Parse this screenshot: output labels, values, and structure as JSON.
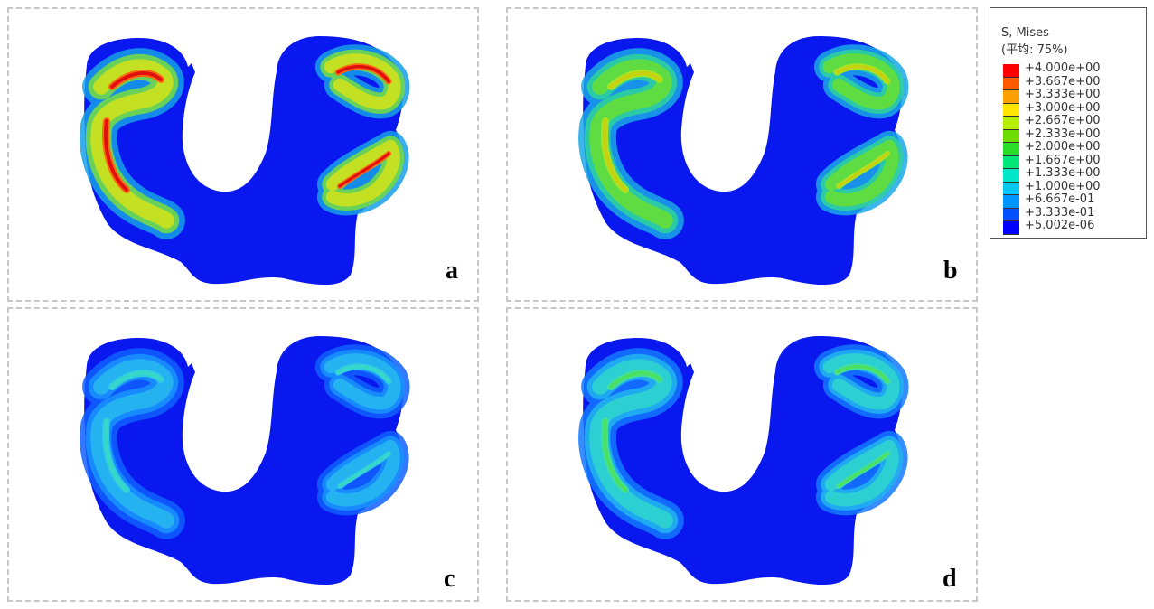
{
  "panels": [
    {
      "label": "a",
      "intensity": "high"
    },
    {
      "label": "b",
      "intensity": "medium-high"
    },
    {
      "label": "c",
      "intensity": "low"
    },
    {
      "label": "d",
      "intensity": "medium-low"
    }
  ],
  "legend": {
    "title_line1": "S, Mises",
    "title_line2": "(平均: 75%)",
    "entries": [
      {
        "value": "+4.000e+00",
        "color": "#ff0000"
      },
      {
        "value": "+3.667e+00",
        "color": "#ff5a00"
      },
      {
        "value": "+3.333e+00",
        "color": "#ffa000"
      },
      {
        "value": "+3.000e+00",
        "color": "#ffe600"
      },
      {
        "value": "+2.667e+00",
        "color": "#b4f000"
      },
      {
        "value": "+2.333e+00",
        "color": "#6edc00"
      },
      {
        "value": "+2.000e+00",
        "color": "#28dc28"
      },
      {
        "value": "+1.667e+00",
        "color": "#00e678"
      },
      {
        "value": "+1.333e+00",
        "color": "#00e6c8"
      },
      {
        "value": "+1.000e+00",
        "color": "#00c8f0"
      },
      {
        "value": "+6.667e-01",
        "color": "#0096ff"
      },
      {
        "value": "+3.333e-01",
        "color": "#0050ff"
      },
      {
        "value": "+5.002e-06",
        "color": "#0000ff"
      }
    ]
  }
}
